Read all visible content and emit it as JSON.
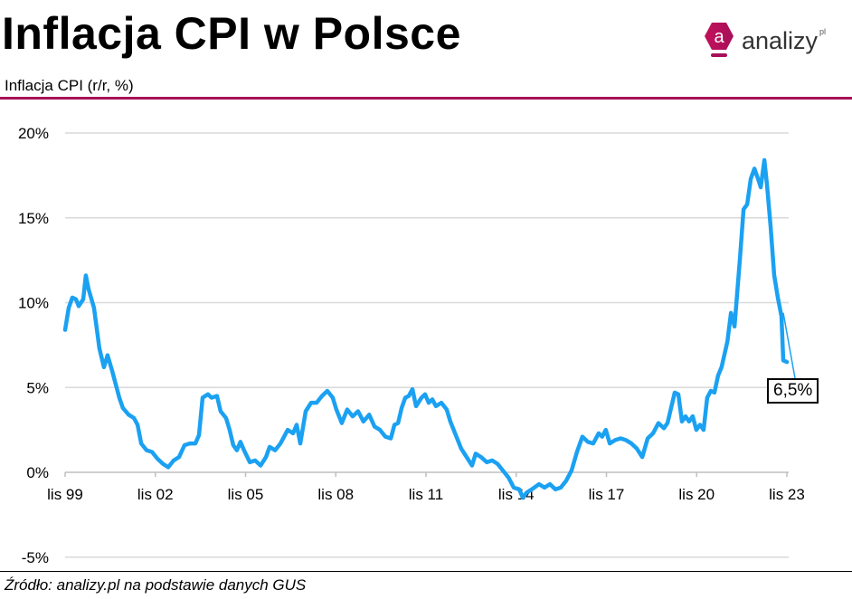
{
  "header": {
    "title": "Inflacja CPI w Polsce",
    "subtitle": "Inflacja CPI (r/r, %)"
  },
  "logo": {
    "text": "analizy",
    "suffix": "pl",
    "letter": "a"
  },
  "footer": {
    "source": "Źródło: analizy.pl na podstawie danych GUS"
  },
  "colors": {
    "line": "#1ba1f2",
    "accent": "#a8105a",
    "grid": "#d9d9d9"
  },
  "chart_data": {
    "type": "line",
    "title": "Inflacja CPI w Polsce",
    "ylabel": "Inflacja CPI (r/r, %)",
    "xlabel": "",
    "ylim": [
      -5,
      20
    ],
    "xlim": [
      1999.83,
      2023.83
    ],
    "yticks": [
      {
        "v": 20,
        "label": "20%"
      },
      {
        "v": 15,
        "label": "15%"
      },
      {
        "v": 10,
        "label": "10%"
      },
      {
        "v": 5,
        "label": "5%"
      },
      {
        "v": 0,
        "label": "0%"
      },
      {
        "v": -5,
        "label": "-5%"
      }
    ],
    "xticks": [
      {
        "v": 1999.83,
        "label": "lis 99"
      },
      {
        "v": 2002.83,
        "label": "lis 02"
      },
      {
        "v": 2005.83,
        "label": "lis 05"
      },
      {
        "v": 2008.83,
        "label": "lis 08"
      },
      {
        "v": 2011.83,
        "label": "lis 11"
      },
      {
        "v": 2014.83,
        "label": "lis 14"
      },
      {
        "v": 2017.83,
        "label": "lis 17"
      },
      {
        "v": 2020.83,
        "label": "lis 20"
      },
      {
        "v": 2023.83,
        "label": "lis 23"
      }
    ],
    "grid": true,
    "annotation": {
      "label": "6,5%",
      "x": 2023.83,
      "y": 6.5
    },
    "series": [
      {
        "name": "Inflacja CPI",
        "x": [
          1999.83,
          1999.95,
          2000.07,
          2000.19,
          2000.28,
          2000.43,
          2000.52,
          2000.61,
          2000.79,
          2000.97,
          2001.12,
          2001.24,
          2001.39,
          2001.51,
          2001.63,
          2001.75,
          2001.94,
          2002.12,
          2002.24,
          2002.36,
          2002.54,
          2002.72,
          2002.9,
          2003.08,
          2003.26,
          2003.44,
          2003.62,
          2003.8,
          2003.98,
          2004.16,
          2004.28,
          2004.4,
          2004.58,
          2004.7,
          2004.88,
          2005.0,
          2005.18,
          2005.3,
          2005.42,
          2005.54,
          2005.66,
          2005.78,
          2005.97,
          2006.15,
          2006.33,
          2006.51,
          2006.63,
          2006.81,
          2006.99,
          2007.23,
          2007.41,
          2007.53,
          2007.65,
          2007.83,
          2008.01,
          2008.19,
          2008.37,
          2008.55,
          2008.73,
          2008.85,
          2009.03,
          2009.21,
          2009.39,
          2009.57,
          2009.75,
          2009.94,
          2010.12,
          2010.3,
          2010.48,
          2010.66,
          2010.78,
          2010.9,
          2011.02,
          2011.14,
          2011.26,
          2011.38,
          2011.5,
          2011.68,
          2011.8,
          2011.92,
          2012.04,
          2012.16,
          2012.34,
          2012.52,
          2012.64,
          2012.82,
          2013.0,
          2013.18,
          2013.36,
          2013.48,
          2013.66,
          2013.85,
          2014.03,
          2014.21,
          2014.39,
          2014.57,
          2014.75,
          2014.93,
          2015.05,
          2015.17,
          2015.35,
          2015.59,
          2015.77,
          2015.95,
          2016.13,
          2016.31,
          2016.49,
          2016.67,
          2016.85,
          2017.03,
          2017.21,
          2017.39,
          2017.57,
          2017.69,
          2017.81,
          2017.94,
          2018.12,
          2018.3,
          2018.48,
          2018.66,
          2018.84,
          2019.02,
          2019.2,
          2019.38,
          2019.56,
          2019.74,
          2019.86,
          2019.98,
          2020.1,
          2020.22,
          2020.34,
          2020.46,
          2020.58,
          2020.7,
          2020.82,
          2020.94,
          2021.06,
          2021.18,
          2021.3,
          2021.42,
          2021.54,
          2021.66,
          2021.85,
          2021.97,
          2022.09,
          2022.27,
          2022.39,
          2022.51,
          2022.63,
          2022.75,
          2022.87,
          2022.96,
          2023.08,
          2023.17,
          2023.29,
          2023.41,
          2023.53,
          2023.65,
          2023.71,
          2023.83
        ],
        "y": [
          8.4,
          9.7,
          10.3,
          10.2,
          9.8,
          10.2,
          11.6,
          10.8,
          9.7,
          7.3,
          6.2,
          6.9,
          6.0,
          5.2,
          4.4,
          3.8,
          3.4,
          3.2,
          2.8,
          1.7,
          1.3,
          1.2,
          0.8,
          0.5,
          0.3,
          0.7,
          0.9,
          1.6,
          1.7,
          1.7,
          2.2,
          4.4,
          4.6,
          4.4,
          4.5,
          3.6,
          3.2,
          2.5,
          1.6,
          1.3,
          1.8,
          1.3,
          0.6,
          0.7,
          0.4,
          0.9,
          1.5,
          1.3,
          1.7,
          2.5,
          2.3,
          2.8,
          1.7,
          3.6,
          4.1,
          4.1,
          4.5,
          4.8,
          4.4,
          3.7,
          2.9,
          3.7,
          3.3,
          3.6,
          3.0,
          3.4,
          2.7,
          2.5,
          2.1,
          2.0,
          2.8,
          2.9,
          3.8,
          4.4,
          4.5,
          4.9,
          3.9,
          4.4,
          4.6,
          4.1,
          4.3,
          3.9,
          4.1,
          3.7,
          3.0,
          2.2,
          1.4,
          0.9,
          0.4,
          1.1,
          0.9,
          0.6,
          0.7,
          0.5,
          0.1,
          -0.3,
          -0.9,
          -1.0,
          -1.5,
          -1.2,
          -1.0,
          -0.7,
          -0.9,
          -0.7,
          -1.0,
          -0.9,
          -0.5,
          0.1,
          1.2,
          2.1,
          1.8,
          1.7,
          2.3,
          2.1,
          2.5,
          1.7,
          1.9,
          2.0,
          1.9,
          1.7,
          1.4,
          0.9,
          2.0,
          2.3,
          2.9,
          2.6,
          2.9,
          3.8,
          4.7,
          4.6,
          3.0,
          3.3,
          3.0,
          3.3,
          2.5,
          2.8,
          2.5,
          4.4,
          4.8,
          4.7,
          5.7,
          6.2,
          7.7,
          9.4,
          8.6,
          12.6,
          15.5,
          15.8,
          17.3,
          17.9,
          17.3,
          16.8,
          18.4,
          16.9,
          14.5,
          11.6,
          10.3,
          9.2,
          6.6,
          6.5
        ]
      }
    ]
  }
}
